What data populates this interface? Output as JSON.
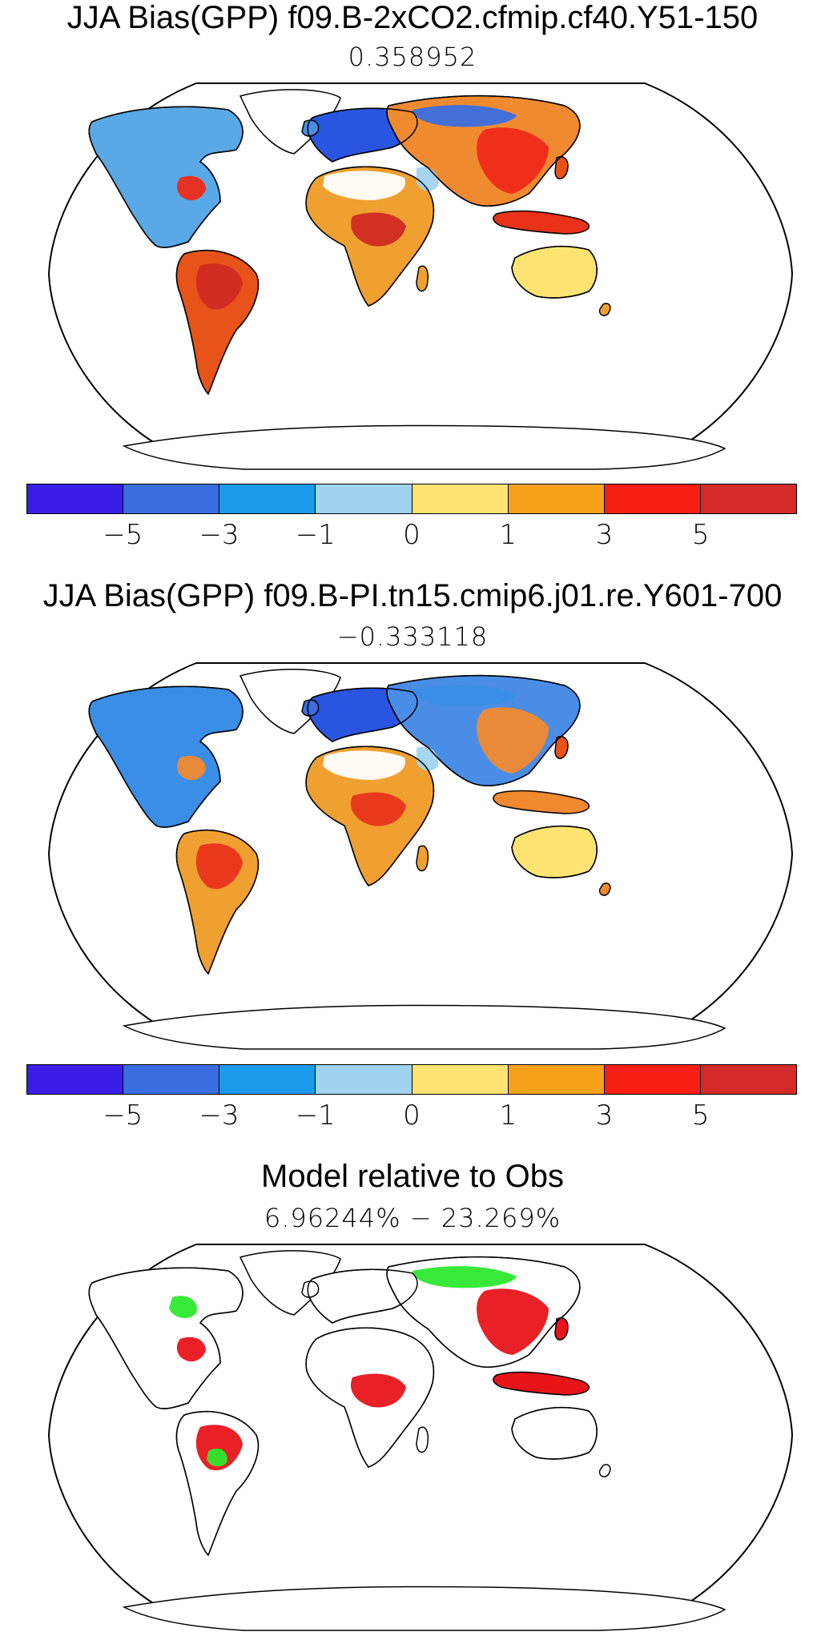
{
  "panels": [
    {
      "title": "JJA Bias(GPP) f09.B-2xCO2.cfmip.cf40.Y51-150",
      "subtitle": "0.358952",
      "has_colorbar": true,
      "regions": {
        "north-america": "#5aa8e6",
        "greenland": "#ffffff",
        "south-america": "#e8531a",
        "africa": "#f0a030",
        "europe": "#2a55e0",
        "asia": "#f08a30",
        "australia": "#fde472",
        "indonesia": "#e8331a",
        "uk": "#4a8de6",
        "japan": "#e8531a",
        "madagascar": "#f0a030",
        "new-zealand": "#f0a030",
        "antarctica": "#ffffff"
      },
      "blobs": [
        {
          "region": "south-america",
          "color": "#cf2a22"
        },
        {
          "region": "africa",
          "color": "#cf2a22"
        },
        {
          "region": "asia",
          "color": "#ef2a1a"
        },
        {
          "region": "sahara",
          "color": "#ffffff"
        },
        {
          "region": "southeast-us",
          "color": "#ef2a1a"
        },
        {
          "region": "siberia",
          "color": "#3a6ee0"
        },
        {
          "region": "arabia",
          "color": "#9fd3f0"
        }
      ]
    },
    {
      "title": "JJA Bias(GPP) f09.B-PI.tn15.cmip6.j01.re.Y601-700",
      "subtitle": "−0.333118",
      "has_colorbar": true,
      "regions": {
        "north-america": "#3a8ee6",
        "greenland": "#ffffff",
        "south-america": "#f0a030",
        "africa": "#f0a030",
        "europe": "#2a55e0",
        "asia": "#4a8de6",
        "australia": "#fde472",
        "indonesia": "#f08a30",
        "uk": "#3a6ee0",
        "japan": "#e8531a",
        "madagascar": "#f0a030",
        "new-zealand": "#f08a30",
        "antarctica": "#ffffff"
      },
      "blobs": [
        {
          "region": "south-america",
          "color": "#e8331a"
        },
        {
          "region": "africa",
          "color": "#e8331a"
        },
        {
          "region": "asia",
          "color": "#f08a30"
        },
        {
          "region": "sahara",
          "color": "#ffffff"
        },
        {
          "region": "southeast-us",
          "color": "#f08a30"
        },
        {
          "region": "siberia",
          "color": "#3a8ee6"
        },
        {
          "region": "arabia",
          "color": "#9fd3f0"
        }
      ]
    },
    {
      "title": "Model relative to Obs",
      "subtitle": "6.96244% − 23.269%",
      "has_colorbar": false,
      "regions": {
        "north-america": "#ffffff",
        "greenland": "#ffffff",
        "south-america": "#ffffff",
        "africa": "#ffffff",
        "europe": "#ffffff",
        "asia": "#ffffff",
        "australia": "#ffffff",
        "indonesia": "#e8141a",
        "uk": "#ffffff",
        "japan": "#e8141a",
        "madagascar": "#ffffff",
        "new-zealand": "#ffffff",
        "antarctica": "#ffffff"
      },
      "blobs": [
        {
          "region": "south-america",
          "color": "#e8141a"
        },
        {
          "region": "africa",
          "color": "#e8141a"
        },
        {
          "region": "asia",
          "color": "#e8141a"
        },
        {
          "region": "siberia",
          "color": "#2ee82e"
        },
        {
          "region": "southeast-us",
          "color": "#e8141a"
        },
        {
          "region": "great-lakes",
          "color": "#2ee82e"
        },
        {
          "region": "amazon-green",
          "color": "#2ee82e"
        }
      ]
    }
  ],
  "colorbar": {
    "colors": [
      "#3a1ee8",
      "#3a6ee0",
      "#1a9ae8",
      "#9fd3f0",
      "#fde472",
      "#f7a01a",
      "#f71e12",
      "#d42a2a"
    ],
    "tick_labels": [
      "−5",
      "−3",
      "−1",
      "0",
      "1",
      "3",
      "5"
    ]
  }
}
